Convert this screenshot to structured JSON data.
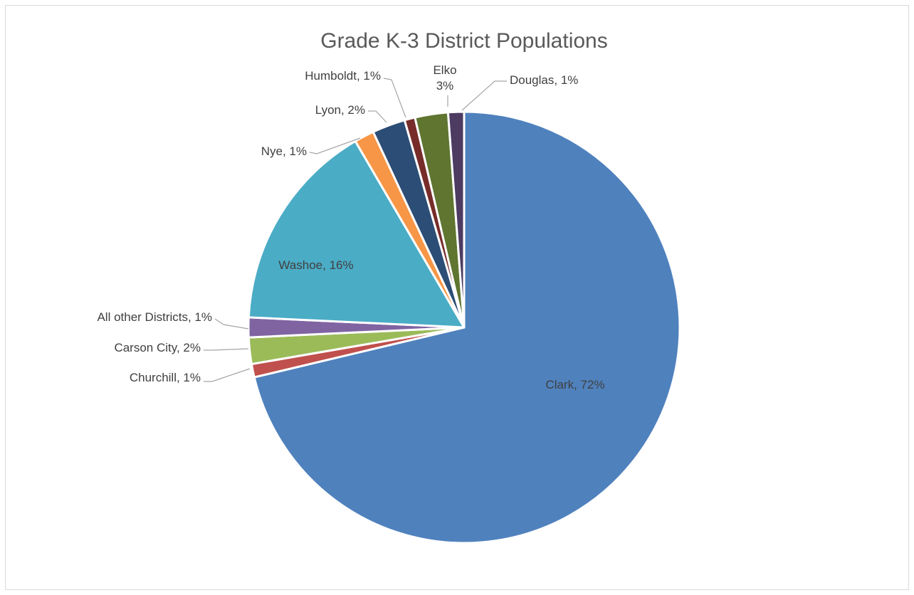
{
  "chart_data": {
    "type": "pie",
    "title": "Grade K-3 District Populations",
    "start_angle_deg": 0,
    "direction": "clockwise",
    "slices": [
      {
        "name": "Clark",
        "value": 72,
        "label": "Clark, 72%",
        "color": "#4f81bd"
      },
      {
        "name": "Churchill",
        "value": 1,
        "label": "Churchill, 1%",
        "color": "#c0504d"
      },
      {
        "name": "Carson City",
        "value": 2,
        "label": "Carson City, 2%",
        "color": "#9bbb59"
      },
      {
        "name": "All other Districts",
        "value": 1.5,
        "label": "All other Districts, 1%",
        "color": "#8064a2"
      },
      {
        "name": "Washoe",
        "value": 16,
        "label": "Washoe, 16%",
        "color": "#4bacc6"
      },
      {
        "name": "Nye",
        "value": 1.5,
        "label": "Nye, 1%",
        "color": "#f79646"
      },
      {
        "name": "Lyon",
        "value": 2.5,
        "label": "Lyon, 2%",
        "color": "#2c4d75"
      },
      {
        "name": "Humboldt",
        "value": 0.8,
        "label": "Humboldt, 1%",
        "color": "#772c2a"
      },
      {
        "name": "Elko",
        "value": 2.5,
        "label": "Elko\n3%",
        "color": "#5f7530"
      },
      {
        "name": "Douglas",
        "value": 1.2,
        "label": "Douglas, 1%",
        "color": "#4d3b62"
      }
    ],
    "data_labels": "outside with leader lines (Clark and Washoe inside)",
    "legend": "none"
  }
}
